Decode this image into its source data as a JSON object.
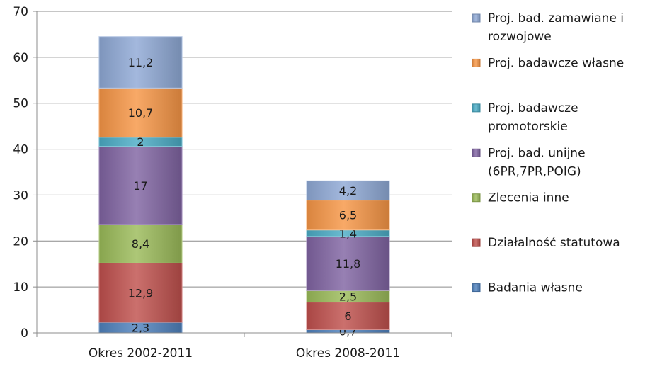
{
  "chart_data": {
    "type": "bar",
    "stacked": true,
    "categories": [
      "Okres 2002-2011",
      "Okres 2008-2011"
    ],
    "ylim": [
      0,
      70
    ],
    "yticks": [
      0,
      10,
      20,
      30,
      40,
      50,
      60,
      70
    ],
    "grid": true,
    "legend_position": "right",
    "series": [
      {
        "name": "Badania własne",
        "color": "#4f81bd",
        "values": [
          2.3,
          0.7
        ],
        "labels": [
          "2,3",
          "0,7"
        ]
      },
      {
        "name": "Działalność statutowa",
        "color": "#c0504d",
        "values": [
          12.9,
          6
        ],
        "labels": [
          "12,9",
          "6"
        ]
      },
      {
        "name": "Zlecenia inne",
        "color": "#9bbb59",
        "values": [
          8.4,
          2.5
        ],
        "labels": [
          "8,4",
          "2,5"
        ]
      },
      {
        "name": "Proj. bad. unijne (6PR,7PR,POIG)",
        "legend_lines": [
          "Proj. bad. unijne",
          "(6PR,7PR,POIG)"
        ],
        "color": "#8064a2",
        "values": [
          17,
          11.8
        ],
        "labels": [
          "17",
          "11,8"
        ]
      },
      {
        "name": "Proj. badawcze promotorskie",
        "legend_lines": [
          "Proj. badawcze",
          "promotorskie"
        ],
        "color": "#4bacc6",
        "values": [
          2,
          1.4
        ],
        "labels": [
          "2",
          "1,4"
        ]
      },
      {
        "name": "Proj. badawcze własne",
        "legend_lines": [
          "Proj. badawcze własne"
        ],
        "color": "#f79646",
        "values": [
          10.7,
          6.5
        ],
        "labels": [
          "10,7",
          "6,5"
        ]
      },
      {
        "name": "Proj. bad. zamawiane i rozwojowe",
        "legend_lines": [
          "Proj. bad. zamawiane i",
          "rozwojowe"
        ],
        "color": "#8fa9d6",
        "values": [
          11.2,
          4.2
        ],
        "labels": [
          "11,2",
          "4,2"
        ]
      }
    ]
  }
}
